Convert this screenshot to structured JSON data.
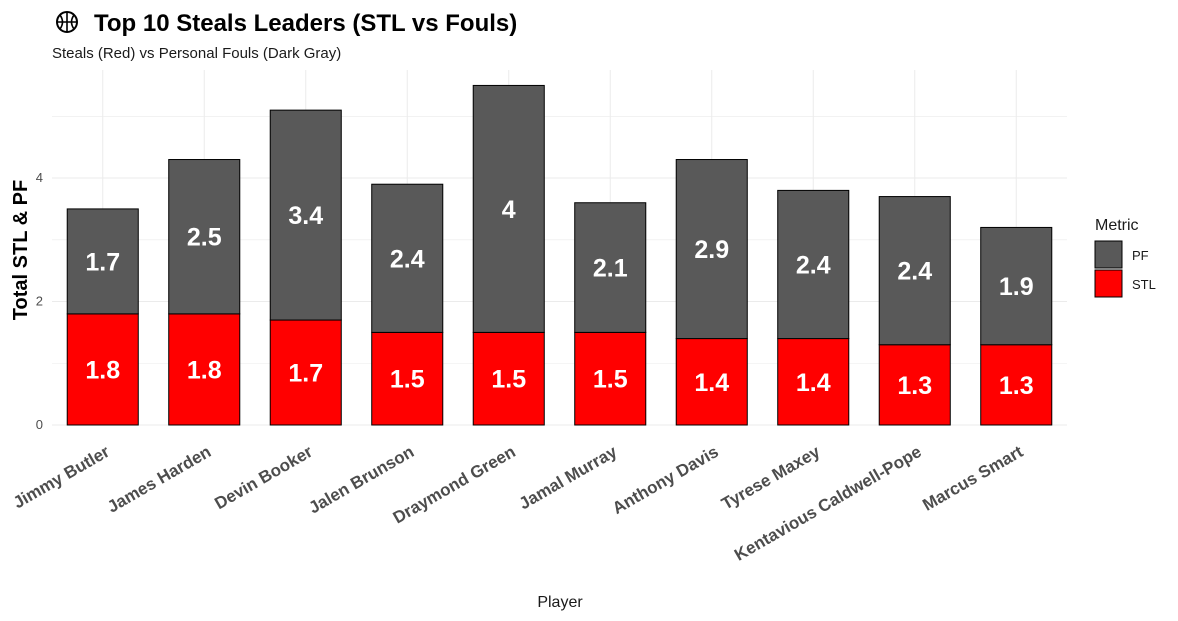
{
  "chart_data": {
    "type": "bar",
    "stacked": true,
    "title": "Top 10 Steals Leaders (STL vs Fouls)",
    "title_icon": "basketball-icon",
    "subtitle": "Steals (Red) vs Personal Fouls (Dark Gray)",
    "xlabel": "Player",
    "ylabel": "Total STL & PF",
    "ylim": [
      0,
      5.75
    ],
    "yticks": [
      0,
      2,
      4
    ],
    "grid": true,
    "legend_title": "Metric",
    "legend_position": "right",
    "categories": [
      "Jimmy Butler",
      "James Harden",
      "Devin Booker",
      "Jalen Brunson",
      "Draymond Green",
      "Jamal Murray",
      "Anthony Davis",
      "Tyrese Maxey",
      "Kentavious Caldwell-Pope",
      "Marcus Smart"
    ],
    "series": [
      {
        "name": "STL",
        "color": "#ff0000",
        "values": [
          1.8,
          1.8,
          1.7,
          1.5,
          1.5,
          1.5,
          1.4,
          1.4,
          1.3,
          1.3
        ]
      },
      {
        "name": "PF",
        "color": "#595959",
        "values": [
          1.7,
          2.5,
          3.4,
          2.4,
          4,
          2.1,
          2.9,
          2.4,
          2.4,
          1.9
        ]
      }
    ],
    "legend_order": [
      "PF",
      "STL"
    ]
  }
}
